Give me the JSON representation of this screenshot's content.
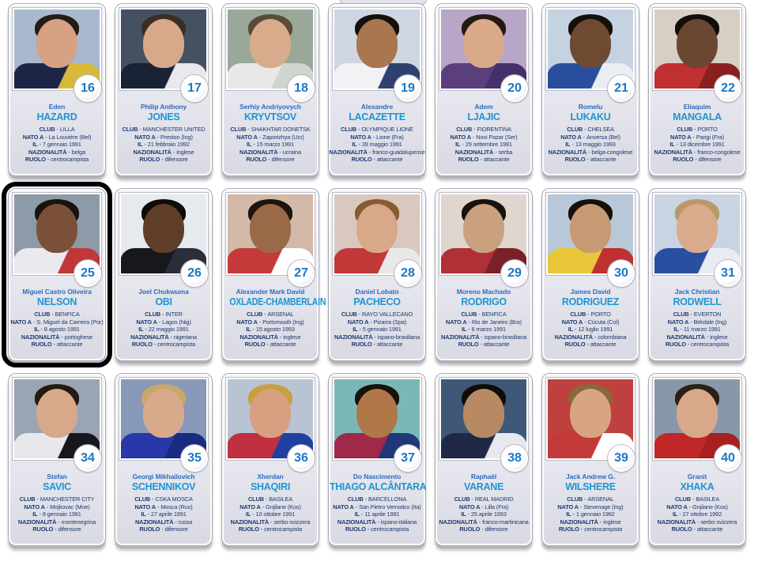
{
  "page": {
    "background": "#ffffff"
  },
  "labels": {
    "club": "CLUB",
    "born_in": "NATO A",
    "born_on": "IL",
    "nationality": "NAZIONALITÀ",
    "role": "RUOLO",
    "sep": "-"
  },
  "colors": {
    "first_name_blue": "#2f6bbe",
    "surname_blue": "#1e96d2",
    "detail_navy": "#1c3a70",
    "number_blue": "#1778c8",
    "highlight_frame": "#000000"
  },
  "players": [
    {
      "number": "16",
      "first_name": "Eden",
      "surname": "HAZARD",
      "club": "LILLA",
      "born_in": "La Louvière (Bel)",
      "born_on": "7 gennaio 1991",
      "nationality": "belga",
      "role": "centrocampista",
      "highlighted": false,
      "photo": {
        "bg": "#a8b9cf",
        "skin": "#d7a183",
        "hair": "#241c16",
        "jersey": "#1d2547",
        "jersey2": "#d8b93c"
      }
    },
    {
      "number": "17",
      "first_name": "Philip Anthony",
      "surname": "JONES",
      "club": "MANCHESTER UNITED",
      "born_in": "Preston (Ing)",
      "born_on": "21 febbraio 1992",
      "nationality": "inglese",
      "role": "difensore",
      "highlighted": false,
      "photo": {
        "bg": "#445161",
        "skin": "#d8a88b",
        "hair": "#3a2e24",
        "jersey": "#1a2335",
        "jersey2": "#e8e8ee"
      }
    },
    {
      "number": "18",
      "first_name": "Serhiy Andriyovych",
      "surname": "KRYVTSOV",
      "club": "SHAKHTAR DONETSK",
      "born_in": "Zaporizhya (Ucr)",
      "born_on": "15 marzo 1991",
      "nationality": "ucraina",
      "role": "difensore",
      "highlighted": false,
      "photo": {
        "bg": "#9aa89a",
        "skin": "#d9ab8d",
        "hair": "#5a4a38",
        "jersey": "#e8e8e8",
        "jersey2": "#cfd5cf"
      }
    },
    {
      "number": "19",
      "first_name": "Alexandre",
      "surname": "LACAZETTE",
      "club": "OLYMPIQUE LIONE",
      "born_in": "Lione (Fra)",
      "born_on": "28 maggio 1991",
      "nationality": "franco-guadalupense",
      "role": "attaccante",
      "highlighted": false,
      "photo": {
        "bg": "#cfd6e2",
        "skin": "#a9764f",
        "hair": "#14100d",
        "jersey": "#f2f2f5",
        "jersey2": "#30406e"
      }
    },
    {
      "number": "20",
      "first_name": "Adem",
      "surname": "LJAJIC",
      "club": "FIORENTINA",
      "born_in": "Novi Pazar (Ser)",
      "born_on": "29 settembre 1991",
      "nationality": "serba",
      "role": "attaccante",
      "highlighted": false,
      "photo": {
        "bg": "#b8a6c8",
        "skin": "#d9a98a",
        "hair": "#241a12",
        "jersey": "#5a3e7e",
        "jersey2": "#46306a"
      }
    },
    {
      "number": "21",
      "first_name": "Romelu",
      "surname": "LUKAKU",
      "club": "CHELSEA",
      "born_in": "Anversa (Bel)",
      "born_on": "13 maggio 1993",
      "nationality": "belga-congolese",
      "role": "attaccante",
      "highlighted": false,
      "photo": {
        "bg": "#c5d2e2",
        "skin": "#6f4a33",
        "hair": "#14100c",
        "jersey": "#2a4e9e",
        "jersey2": "#e9edf4"
      }
    },
    {
      "number": "22",
      "first_name": "Eliaquim",
      "surname": "MANGALA",
      "club": "PORTO",
      "born_in": "Parigi (Fra)",
      "born_on": "13 dicembre 1991",
      "nationality": "franco-congolese",
      "role": "difensore",
      "highlighted": false,
      "photo": {
        "bg": "#d8cfc4",
        "skin": "#6b4630",
        "hair": "#100d0a",
        "jersey": "#c03030",
        "jersey2": "#8b1f1f"
      }
    },
    {
      "number": "25",
      "first_name": "Miguel Castro Oliveira",
      "surname": "NELSON",
      "club": "BENFICA",
      "born_in": "S. Miguel da Carreira (Por)",
      "born_on": "8 agosto 1991",
      "nationality": "portoghese",
      "role": "attaccante",
      "highlighted": true,
      "photo": {
        "bg": "#8d9aa8",
        "skin": "#7a5138",
        "hair": "#1a130d",
        "jersey": "#e9e9ee",
        "jersey2": "#c23737"
      }
    },
    {
      "number": "26",
      "first_name": "Joel Chukwuma",
      "surname": "OBI",
      "club": "INTER",
      "born_in": "Lagos (Nig)",
      "born_on": "22 maggio 1991",
      "nationality": "nigeriana",
      "role": "centrocampista",
      "highlighted": false,
      "photo": {
        "bg": "#e6e9ee",
        "skin": "#5f3f2a",
        "hair": "#0f0c09",
        "jersey": "#16181c",
        "jersey2": "#2a2e38"
      }
    },
    {
      "number": "27",
      "first_name": "Alexander Mark David",
      "surname": "OXLADE-CHAMBERLAIN",
      "club": "ARSENAL",
      "born_in": "Portsmouth (Ing)",
      "born_on": "15 agosto 1993",
      "nationality": "inglese",
      "role": "attaccante",
      "highlighted": false,
      "photo": {
        "bg": "#d2b9a8",
        "skin": "#9a6a48",
        "hair": "#1c140e",
        "jersey": "#c43a3a",
        "jersey2": "#ffffff"
      }
    },
    {
      "number": "28",
      "first_name": "Daniel Lobato",
      "surname": "PACHECO",
      "club": "RAYO VALLECANO",
      "born_in": "Pizarra (Spa)",
      "born_on": "5 gennaio 1991",
      "nationality": "ispano-brasiliana",
      "role": "attaccante",
      "highlighted": false,
      "photo": {
        "bg": "#d8c8c0",
        "skin": "#d8a888",
        "hair": "#8a5a30",
        "jersey": "#c03838",
        "jersey2": "#e8e8e8"
      }
    },
    {
      "number": "29",
      "first_name": "Moreno Machado",
      "surname": "RODRIGO",
      "club": "BENFICA",
      "born_in": "Rio de Janeiro (Bra)",
      "born_on": "6 marzo 1991",
      "nationality": "ispano-brasiliana",
      "role": "attaccante",
      "highlighted": false,
      "photo": {
        "bg": "#e0d6d0",
        "skin": "#caa07e",
        "hair": "#18120d",
        "jersey": "#b03038",
        "jersey2": "#7a2028"
      }
    },
    {
      "number": "30",
      "first_name": "James David",
      "surname": "RODRIGUEZ",
      "club": "PORTO",
      "born_in": "Cúcuta (Col)",
      "born_on": "12 luglio 1991",
      "nationality": "colombiana",
      "role": "attaccante",
      "highlighted": false,
      "photo": {
        "bg": "#b8c8d8",
        "skin": "#c89a74",
        "hair": "#161009",
        "jersey": "#e8c83a",
        "jersey2": "#c03030"
      }
    },
    {
      "number": "31",
      "first_name": "Jack Christian",
      "surname": "RODWELL",
      "club": "EVERTON",
      "born_in": "Birkdale (Ing)",
      "born_on": "11 marzo 1991",
      "nationality": "inglese",
      "role": "centrocampista",
      "highlighted": false,
      "photo": {
        "bg": "#c8d4e2",
        "skin": "#d9ab8d",
        "hair": "#b89868",
        "jersey": "#2850a0",
        "jersey2": "#e8ecf2"
      }
    },
    {
      "number": "34",
      "first_name": "Stefan",
      "surname": "SAVIC",
      "club": "MANCHESTER CITY",
      "born_in": "Mojkovac (Mne)",
      "born_on": "8 gennaio 1991",
      "nationality": "montenegrina",
      "role": "difensore",
      "highlighted": false,
      "photo": {
        "bg": "#9aa4b2",
        "skin": "#d8a88a",
        "hair": "#241a12",
        "jersey": "#e8e8ec",
        "jersey2": "#16181e"
      }
    },
    {
      "number": "35",
      "first_name": "Georgi Mikhailovich",
      "surname": "SCHENNIKOV",
      "club": "CSKA MOSCA",
      "born_in": "Mosca (Rus)",
      "born_on": "27 aprile 1991",
      "nationality": "russa",
      "role": "difensore",
      "highlighted": false,
      "photo": {
        "bg": "#8898b8",
        "skin": "#d8aa8c",
        "hair": "#c8a86a",
        "jersey": "#2838a8",
        "jersey2": "#1a2a80"
      }
    },
    {
      "number": "36",
      "first_name": "Xherdan",
      "surname": "SHAQIRI",
      "club": "BASILEA",
      "born_in": "Gnjilane (Kos)",
      "born_on": "10 ottobre 1991",
      "nationality": "serbo-svizzera",
      "role": "centrocampista",
      "highlighted": false,
      "photo": {
        "bg": "#b8c4d4",
        "skin": "#d8a080",
        "hair": "#c8a040",
        "jersey": "#c03040",
        "jersey2": "#2040a0"
      }
    },
    {
      "number": "37",
      "first_name": "Do Nascimento",
      "surname": "THIAGO ALCÂNTARA",
      "club": "BARCELLONA",
      "born_in": "San Pietro Vernotico (Ita)",
      "born_on": "11 aprile 1991",
      "nationality": "ispano-italiana",
      "role": "centrocampista",
      "highlighted": false,
      "photo": {
        "bg": "#7ab8b8",
        "skin": "#b07848",
        "hair": "#18120c",
        "jersey": "#a02848",
        "jersey2": "#203878"
      }
    },
    {
      "number": "38",
      "first_name": "Raphaël",
      "surname": "VARANE",
      "club": "REAL MADRID",
      "born_in": "Lilla (Fra)",
      "born_on": "25 aprile 1993",
      "nationality": "franco-martinicana",
      "role": "difensore",
      "highlighted": false,
      "photo": {
        "bg": "#405878",
        "skin": "#b88a64",
        "hair": "#100c08",
        "jersey": "#202848",
        "jersey2": "#e8e8ee"
      }
    },
    {
      "number": "39",
      "first_name": "Jack Andrew G.",
      "surname": "WILSHERE",
      "club": "ARSENAL",
      "born_in": "Stevenage (Ing)",
      "born_on": "1 gennaio 1992",
      "nationality": "inglese",
      "role": "centrocampista",
      "highlighted": false,
      "photo": {
        "bg": "#c04040",
        "skin": "#d8a484",
        "hair": "#8a6838",
        "jersey": "#c43a3a",
        "jersey2": "#ffffff"
      }
    },
    {
      "number": "40",
      "first_name": "Granit",
      "surname": "XHAKA",
      "club": "BASILEA",
      "born_in": "Gnjilane (Kos)",
      "born_on": "27 ottobre 1992",
      "nationality": "serbo-svizzera",
      "role": "attaccante",
      "highlighted": false,
      "photo": {
        "bg": "#8898a8",
        "skin": "#d8a88a",
        "hair": "#2a2018",
        "jersey": "#c02828",
        "jersey2": "#a82020"
      }
    }
  ]
}
